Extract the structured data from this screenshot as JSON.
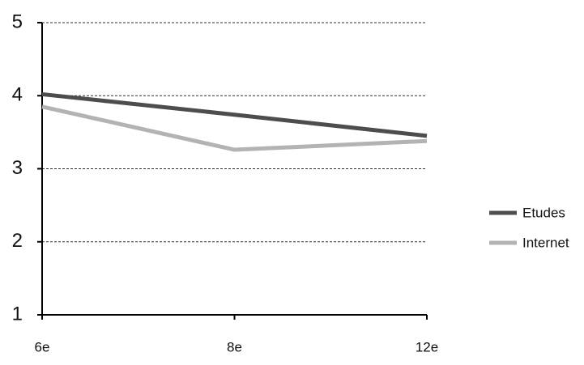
{
  "chart_data": {
    "type": "line",
    "categories": [
      "6e",
      "8e",
      "12e"
    ],
    "series": [
      {
        "name": "Etudes",
        "color": "#4d4d4d",
        "values": [
          4.02,
          3.74,
          3.45
        ]
      },
      {
        "name": "Internet",
        "color": "#b3b3b3",
        "values": [
          3.85,
          3.26,
          3.38
        ]
      }
    ],
    "ylim": [
      1,
      5
    ],
    "yticks": [
      1,
      2,
      3,
      4,
      5
    ],
    "grid": true,
    "legend": "right"
  }
}
